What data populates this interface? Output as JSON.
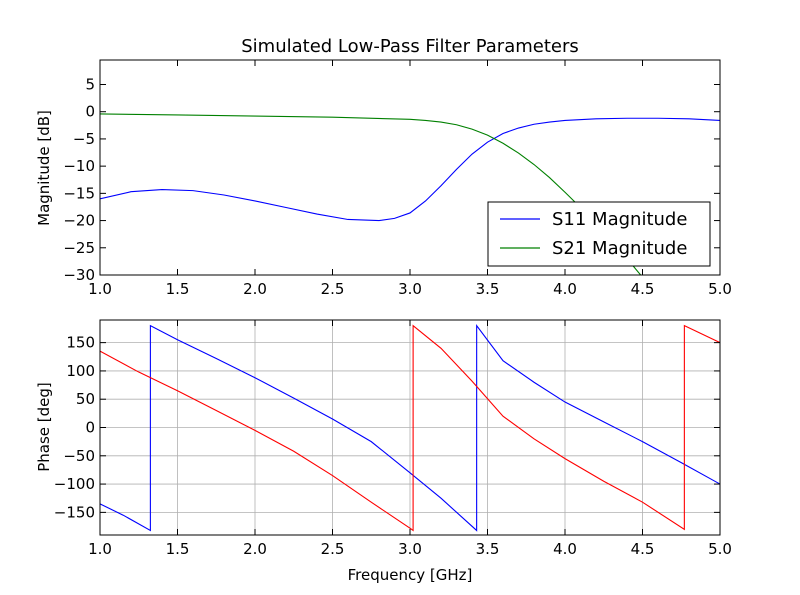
{
  "chart_data": [
    {
      "type": "line",
      "title": "Simulated Low-Pass Filter Parameters",
      "xlabel": "",
      "ylabel": "Magnitude [dB]",
      "xlim": [
        1.0,
        5.0
      ],
      "ylim": [
        -30,
        9.5
      ],
      "xticks": [
        "1.0",
        "1.5",
        "2.0",
        "2.5",
        "3.0",
        "3.5",
        "4.0",
        "4.5",
        "5.0"
      ],
      "yticks": [
        "5",
        "0",
        "−5",
        "−10",
        "−15",
        "−20",
        "−25",
        "−30"
      ],
      "grid": false,
      "legend": "lower-right",
      "series": [
        {
          "name": "S11 Magnitude",
          "color": "#0000ff",
          "x": [
            1.0,
            1.2,
            1.4,
            1.6,
            1.8,
            2.0,
            2.2,
            2.4,
            2.6,
            2.8,
            2.9,
            3.0,
            3.1,
            3.2,
            3.3,
            3.4,
            3.5,
            3.6,
            3.7,
            3.8,
            3.9,
            4.0,
            4.2,
            4.4,
            4.6,
            4.8,
            5.0
          ],
          "y": [
            -16.0,
            -14.7,
            -14.3,
            -14.5,
            -15.3,
            -16.4,
            -17.6,
            -18.8,
            -19.8,
            -20.0,
            -19.6,
            -18.6,
            -16.4,
            -13.6,
            -10.6,
            -7.8,
            -5.6,
            -4.0,
            -3.0,
            -2.3,
            -1.9,
            -1.6,
            -1.3,
            -1.2,
            -1.2,
            -1.3,
            -1.6
          ]
        },
        {
          "name": "S21 Magnitude",
          "color": "#008000",
          "x": [
            1.0,
            1.5,
            2.0,
            2.5,
            3.0,
            3.1,
            3.2,
            3.3,
            3.4,
            3.5,
            3.6,
            3.7,
            3.8,
            3.9,
            4.0,
            4.1,
            4.2,
            4.3,
            4.4,
            4.5
          ],
          "y": [
            -0.4,
            -0.6,
            -0.8,
            -1.0,
            -1.4,
            -1.6,
            -1.9,
            -2.4,
            -3.2,
            -4.3,
            -5.8,
            -7.6,
            -9.7,
            -12.1,
            -14.8,
            -17.6,
            -20.7,
            -23.8,
            -27.0,
            -30.4
          ]
        }
      ]
    },
    {
      "type": "line",
      "title": "",
      "xlabel": "Frequency [GHz]",
      "ylabel": "Phase [deg]",
      "xlim": [
        1.0,
        5.0
      ],
      "ylim": [
        -190,
        190
      ],
      "xticks": [
        "1.0",
        "1.5",
        "2.0",
        "2.5",
        "3.0",
        "3.5",
        "4.0",
        "4.5",
        "5.0"
      ],
      "yticks": [
        "150",
        "100",
        "50",
        "0",
        "−50",
        "−100",
        "−150"
      ],
      "grid": true,
      "series": [
        {
          "color": "#0000ff",
          "x": [
            1.0,
            1.15,
            1.325,
            1.3251,
            1.5,
            1.75,
            2.0,
            2.25,
            2.5,
            2.75,
            3.0,
            3.2,
            3.43,
            3.4301,
            3.6,
            3.8,
            4.0,
            4.25,
            4.5,
            4.75,
            5.0
          ],
          "y": [
            -135,
            -155,
            -182,
            180,
            155,
            122,
            88,
            52,
            15,
            -25,
            -80,
            -125,
            -182,
            180,
            118,
            80,
            45,
            10,
            -25,
            -62,
            -100
          ]
        },
        {
          "color": "#ff0000",
          "x": [
            1.0,
            1.25,
            1.5,
            1.75,
            2.0,
            2.25,
            2.5,
            2.75,
            3.0,
            3.02,
            3.0201,
            3.2,
            3.4,
            3.6,
            3.8,
            4.0,
            4.25,
            4.5,
            4.77,
            4.7701,
            5.0
          ],
          "y": [
            135,
            98,
            65,
            30,
            -5,
            -42,
            -85,
            -132,
            -178,
            -182,
            180,
            140,
            82,
            20,
            -20,
            -55,
            -95,
            -132,
            -180,
            180,
            150
          ]
        }
      ]
    }
  ]
}
